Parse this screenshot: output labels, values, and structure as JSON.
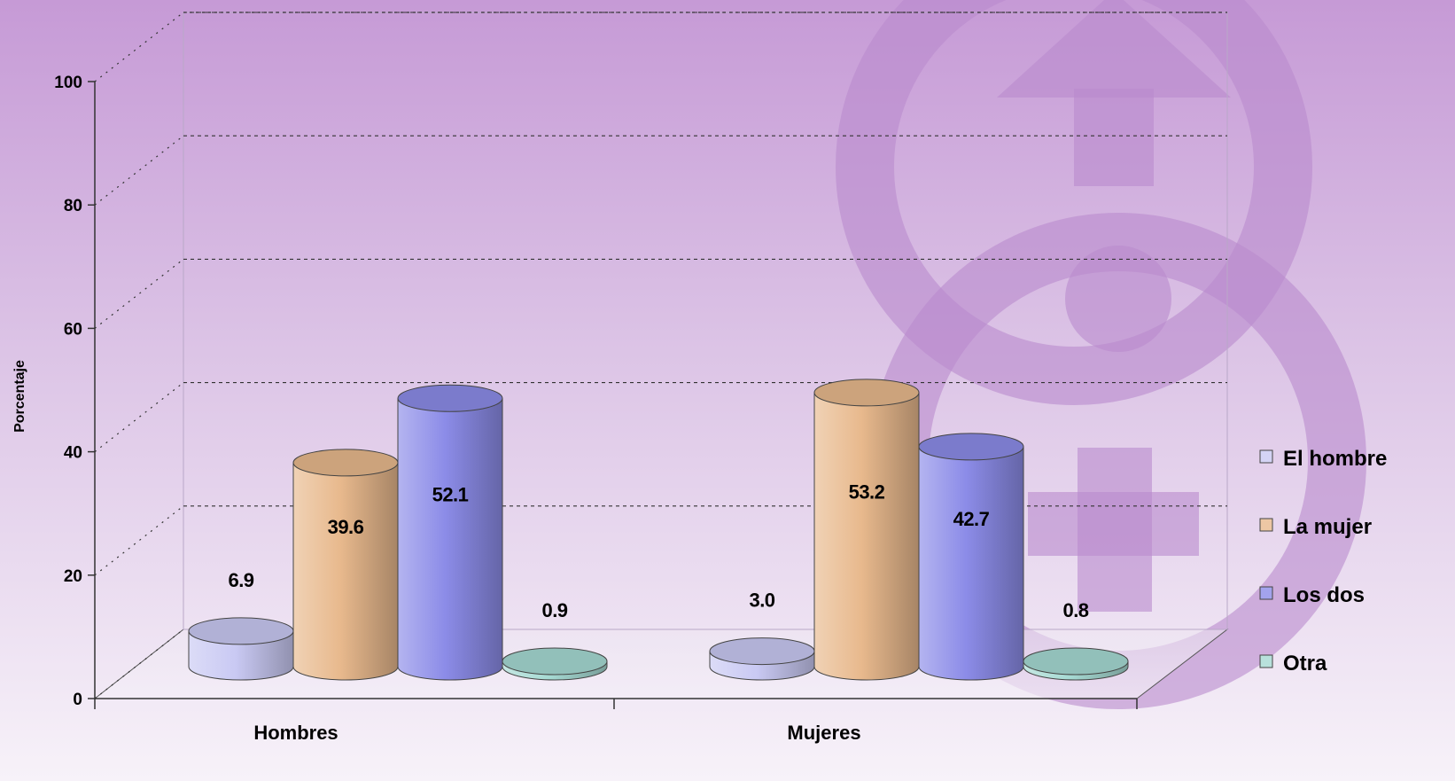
{
  "chart_data": {
    "type": "bar",
    "categories": [
      "Hombres",
      "Mujeres"
    ],
    "series": [
      {
        "name": "El hombre",
        "values": [
          6.9,
          3.0
        ],
        "color": "#C9C9F3"
      },
      {
        "name": "La mujer",
        "values": [
          39.6,
          53.2
        ],
        "color": "#E8B98D"
      },
      {
        "name": "Los dos",
        "values": [
          52.1,
          42.7
        ],
        "color": "#8C8CE8"
      },
      {
        "name": "Otra",
        "values": [
          0.9,
          0.8
        ],
        "color": "#A6DAD3"
      }
    ],
    "value_labels": [
      [
        "6.9",
        "3.0"
      ],
      [
        "39.6",
        "53.2"
      ],
      [
        "52.1",
        "42.7"
      ],
      [
        "0.9",
        "0.8"
      ]
    ],
    "ylabel": "Porcentaje",
    "xlabel": "",
    "title": "",
    "ylim": [
      0,
      100
    ],
    "yticks": [
      "0",
      "20",
      "40",
      "60",
      "80",
      "100"
    ],
    "grid": true,
    "legend_position": "right",
    "background": "purple gradient with overlaid gender symbols"
  }
}
